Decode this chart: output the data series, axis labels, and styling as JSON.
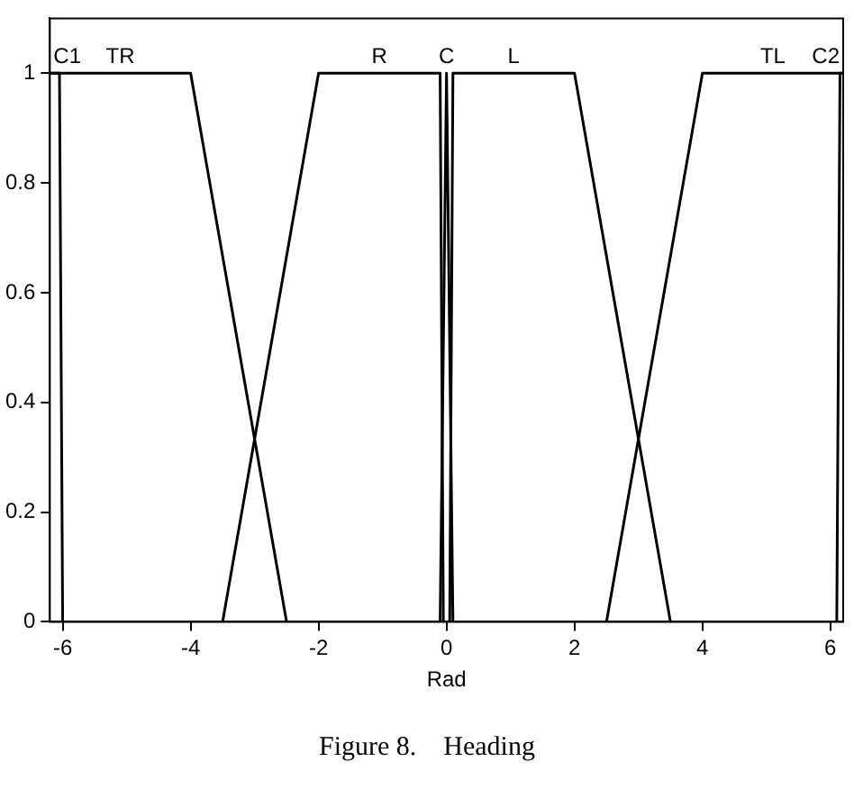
{
  "chart_data": {
    "type": "line",
    "xlabel": "Rad",
    "xlim": [
      -6.2,
      6.2
    ],
    "xticks": [
      -6,
      -4,
      -2,
      0,
      2,
      4,
      6
    ],
    "ylim": [
      0,
      1.1
    ],
    "yticks": [
      0,
      0.2,
      0.4,
      0.6,
      0.8,
      1
    ],
    "grid": false,
    "legend": false,
    "marker": "none",
    "line_style": "solid",
    "annotations": [
      "Figure 8.    Heading"
    ],
    "series": [
      {
        "name": "C1",
        "color": "#000000",
        "x": [
          -6.2,
          -6.05,
          -6.0
        ],
        "values": [
          1,
          1,
          0
        ]
      },
      {
        "name": "TR",
        "color": "#000000",
        "x": [
          -6.2,
          -4,
          -2.5
        ],
        "values": [
          1,
          1,
          0
        ]
      },
      {
        "name": "R",
        "color": "#000000",
        "x": [
          -3.5,
          -2,
          -0.1,
          -0.05
        ],
        "values": [
          0,
          1,
          1,
          0
        ]
      },
      {
        "name": "C",
        "color": "#000000",
        "x": [
          -0.1,
          0,
          0.1
        ],
        "values": [
          0,
          1,
          0
        ]
      },
      {
        "name": "L",
        "color": "#000000",
        "x": [
          0.05,
          0.1,
          2,
          3.5
        ],
        "values": [
          0,
          1,
          1,
          0
        ]
      },
      {
        "name": "TL",
        "color": "#000000",
        "x": [
          2.5,
          4,
          6.2
        ],
        "values": [
          0,
          1,
          1
        ]
      },
      {
        "name": "C2",
        "color": "#000000",
        "x": [
          6.1,
          6.15,
          6.2
        ],
        "values": [
          0,
          1,
          1
        ]
      }
    ]
  }
}
